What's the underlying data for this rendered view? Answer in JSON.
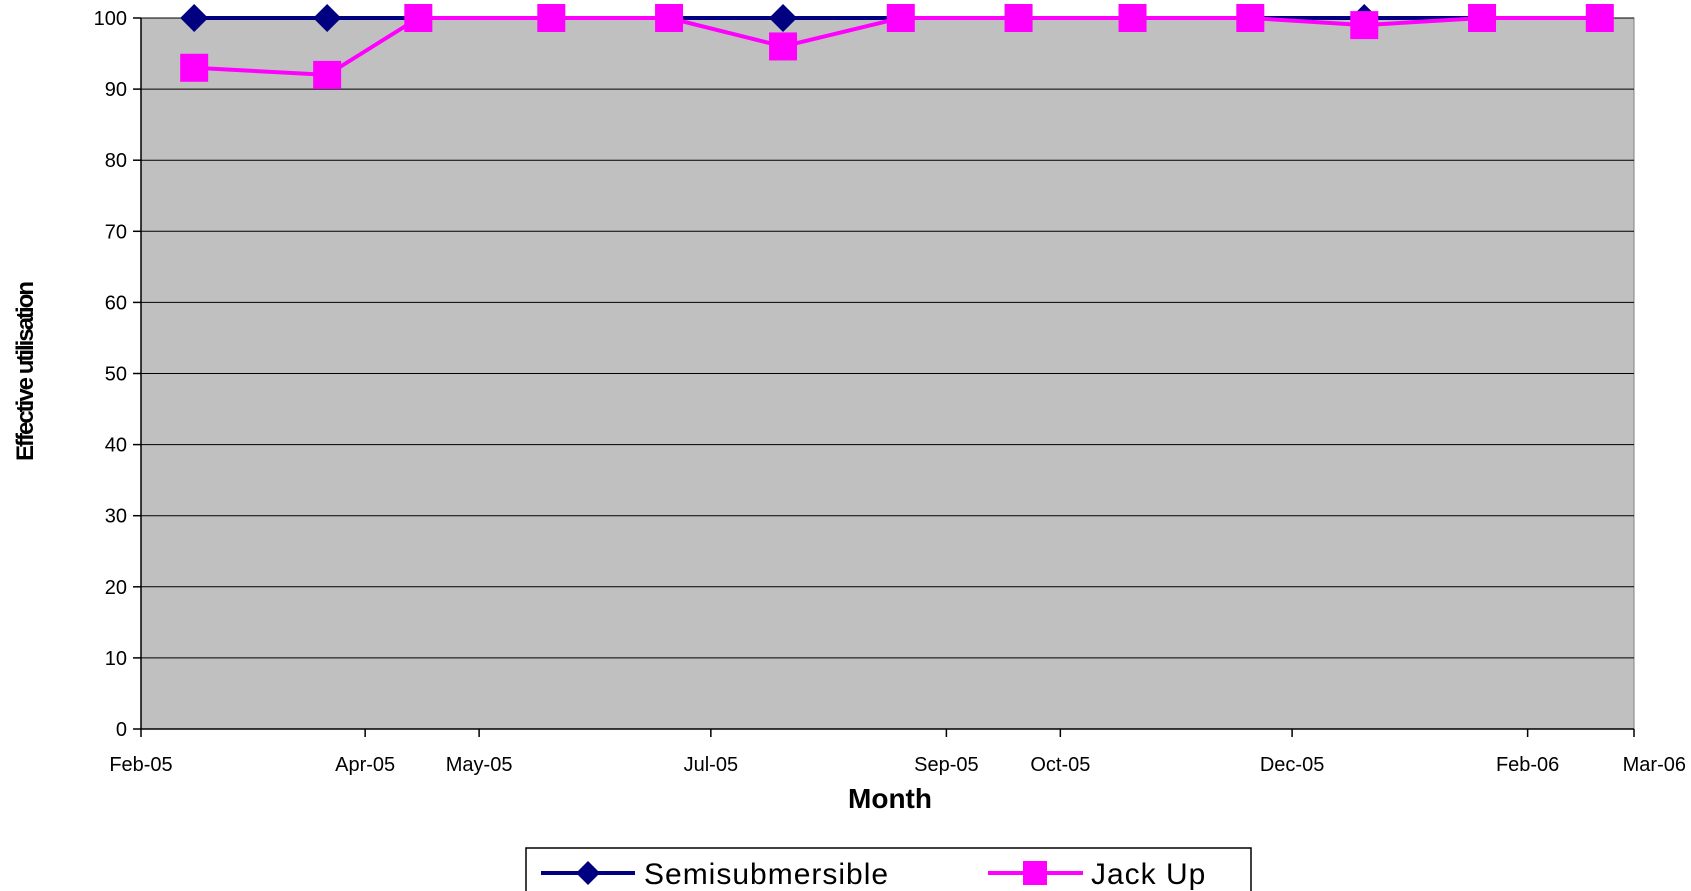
{
  "chart_data": {
    "type": "line",
    "title": "",
    "xlabel": "Month",
    "ylabel": "Effective utilisation",
    "xlim": [
      "2005-02-01",
      "2006-03-01"
    ],
    "ylim": [
      0,
      100
    ],
    "y_ticks": [
      0,
      10,
      20,
      30,
      40,
      50,
      60,
      70,
      80,
      90,
      100
    ],
    "x_ticks": [
      {
        "date": "2005-02-01",
        "label": "Feb-05"
      },
      {
        "date": "2005-04-01",
        "label": "Apr-05"
      },
      {
        "date": "2005-05-01",
        "label": "May-05"
      },
      {
        "date": "2005-07-01",
        "label": "Jul-05"
      },
      {
        "date": "2005-09-01",
        "label": "Sep-05"
      },
      {
        "date": "2005-10-01",
        "label": "Oct-05"
      },
      {
        "date": "2005-12-01",
        "label": "Dec-05"
      },
      {
        "date": "2006-02-01",
        "label": "Feb-06"
      },
      {
        "date": "2006-03-01",
        "label": "Mar-06"
      }
    ],
    "x": [
      "2005-02-15",
      "2005-03-22",
      "2005-04-15",
      "2005-05-20",
      "2005-06-20",
      "2005-07-20",
      "2005-08-20",
      "2005-09-20",
      "2005-10-20",
      "2005-11-20",
      "2005-12-20",
      "2006-01-20",
      "2006-02-20"
    ],
    "series": [
      {
        "name": "Semisubmersible",
        "color": "#000080",
        "marker": "diamond",
        "values": [
          100,
          100,
          100,
          100,
          100,
          100,
          100,
          100,
          100,
          100,
          100,
          100,
          100
        ]
      },
      {
        "name": "Jack Up",
        "color": "#ff00ff",
        "marker": "square",
        "values": [
          93,
          92,
          100,
          100,
          100,
          96,
          100,
          100,
          100,
          100,
          99,
          100,
          100
        ]
      }
    ],
    "grid": true,
    "plot_background": "#c0c0c0",
    "legend_position": "bottom"
  }
}
